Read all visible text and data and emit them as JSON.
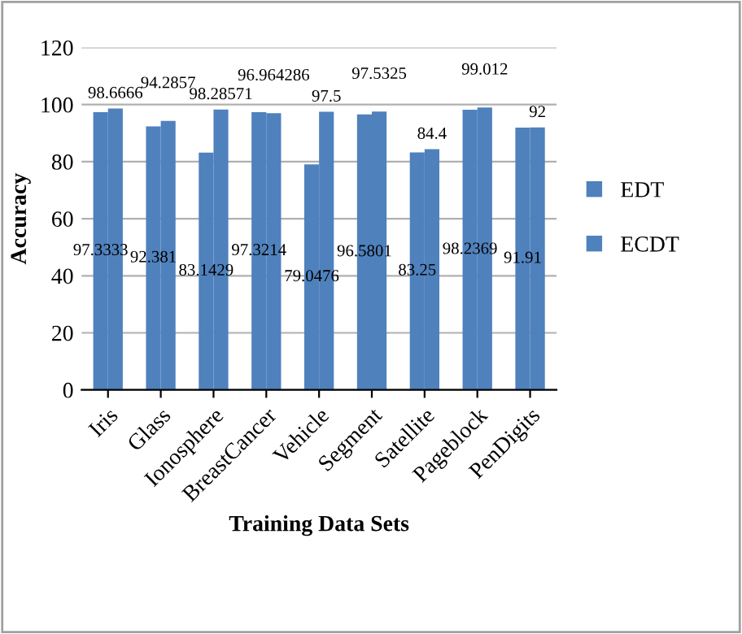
{
  "chart_data": {
    "type": "bar",
    "xlabel": "Training Data Sets",
    "ylabel": "Accuracy",
    "categories": [
      "Iris",
      "Glass",
      "Ionosphere",
      "BreastCancer",
      "Vehicle",
      "Segment",
      "Satellite",
      "Pageblock",
      "PenDigits"
    ],
    "series": [
      {
        "name": "EDT",
        "color": "#4f81bd",
        "values": [
          97.3333,
          92.381,
          83.1429,
          97.3214,
          79.0476,
          96.5801,
          83.25,
          98.2369,
          91.91
        ]
      },
      {
        "name": "ECDT",
        "color": "#4f81bd",
        "values": [
          98.6666,
          94.2857,
          98.28571,
          96.964286,
          97.5,
          97.5325,
          84.4,
          99.012,
          92
        ]
      }
    ],
    "data_labels": true,
    "ylim": [
      0,
      120
    ],
    "yticks": [
      0,
      20,
      40,
      60,
      80,
      100,
      120
    ],
    "grid": "y",
    "legend": "right"
  }
}
